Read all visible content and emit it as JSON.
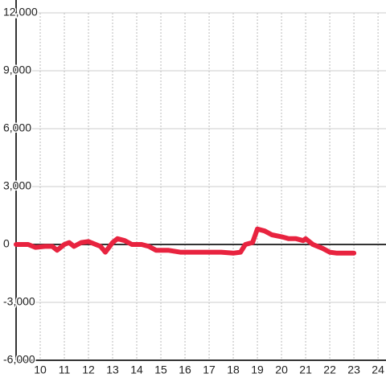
{
  "chart_data": {
    "type": "line",
    "xlim": [
      9,
      24.33
    ],
    "xticks": [
      10,
      11,
      12,
      13,
      14,
      15,
      16,
      17,
      18,
      19,
      20,
      21,
      22,
      23,
      24
    ],
    "ylim": [
      -6000,
      12000
    ],
    "yticks": [
      {
        "value": -6000,
        "label": "-6,000"
      },
      {
        "value": -3000,
        "label": "-3,000"
      },
      0,
      {
        "value": 3000,
        "label": "3,000"
      },
      {
        "value": 6000,
        "label": "6,000"
      },
      {
        "value": 9000,
        "label": "9,000"
      },
      {
        "value": 12000,
        "label": "12,000"
      }
    ],
    "grid": true,
    "series": [
      {
        "color": "#e8233f",
        "x": [
          9.0,
          9.5,
          9.8,
          10.2,
          10.5,
          10.7,
          11.0,
          11.2,
          11.4,
          11.7,
          12.0,
          12.3,
          12.5,
          12.7,
          13.0,
          13.2,
          13.5,
          13.8,
          14.2,
          14.5,
          14.8,
          15.3,
          15.8,
          16.5,
          17.5,
          18.0,
          18.3,
          18.5,
          18.8,
          19.0,
          19.3,
          19.6,
          20.0,
          20.3,
          20.6,
          20.9,
          21.0,
          21.3,
          21.7,
          22.0,
          22.3,
          23.0
        ],
        "values": [
          0,
          0,
          -150,
          -100,
          -100,
          -300,
          0,
          100,
          -100,
          100,
          150,
          0,
          -100,
          -400,
          100,
          300,
          200,
          0,
          0,
          -100,
          -300,
          -300,
          -400,
          -400,
          -400,
          -450,
          -400,
          0,
          100,
          800,
          700,
          500,
          400,
          300,
          300,
          200,
          300,
          0,
          -200,
          -400,
          -450,
          -450
        ]
      }
    ]
  }
}
